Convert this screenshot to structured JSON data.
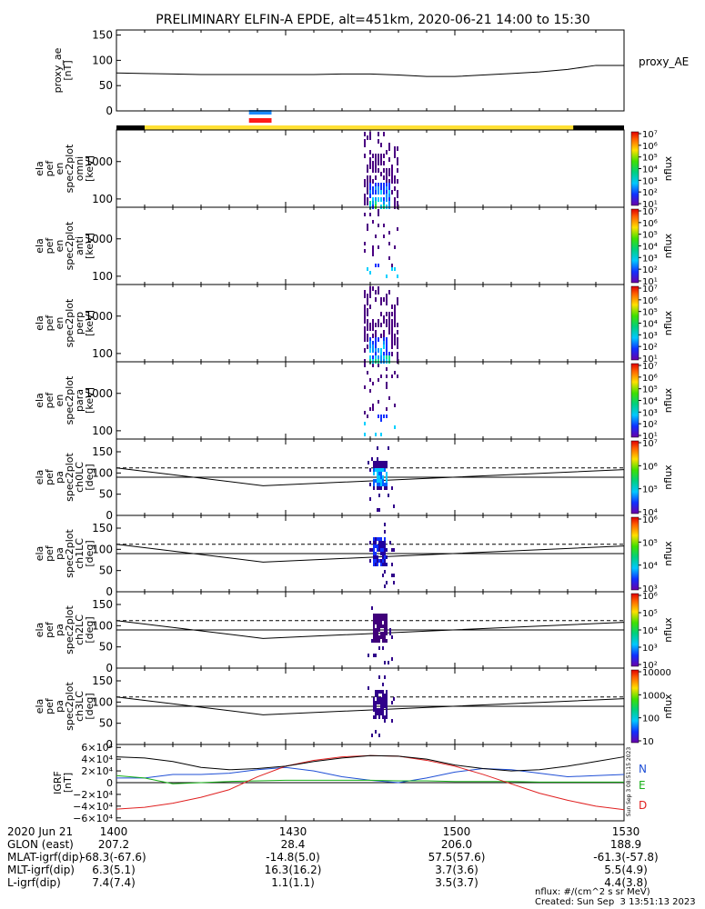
{
  "title": "PRELIMINARY ELFIN-A EPDE, alt=451km, 2020-06-21 14:00 to 15:30",
  "colors": {
    "sunlit": "#ffe033",
    "eclipse": "#000000",
    "science_blue": "#1e8bff",
    "science_red": "#ff1a1a",
    "B_north": "#1f4fd6",
    "B_east": "#18b018",
    "B_down": "#e02020"
  },
  "chart_data": [
    {
      "type": "line",
      "panel": "proxy_ae",
      "ylabel": [
        "proxy_ae",
        "[nT]"
      ],
      "yticks": [
        0,
        50,
        100,
        150
      ],
      "ylim": [
        0,
        160
      ],
      "series_label": "proxy_AE",
      "x_min": [
        0,
        5,
        10,
        15,
        20,
        25,
        30,
        35,
        40,
        45,
        50,
        55,
        60,
        65,
        70,
        75,
        80,
        85,
        90
      ],
      "values": [
        75,
        74,
        73,
        72,
        72,
        72,
        72,
        72,
        73,
        73,
        71,
        68,
        68,
        71,
        74,
        77,
        82,
        90,
        90
      ]
    },
    {
      "type": "heatmap",
      "panel": "omni",
      "ylabel": [
        "ela",
        "pef",
        "en",
        "spec2plot",
        "omni",
        "[keV]"
      ],
      "yticks": [
        "100",
        "1000"
      ],
      "yscale": "log",
      "ylim": [
        60,
        7000
      ],
      "colorbar_ticks": [
        "10¹",
        "10²",
        "10³",
        "10⁴",
        "10⁵",
        "10⁶",
        "10⁷"
      ],
      "colorbar_label": "nflux"
    },
    {
      "type": "heatmap",
      "panel": "anti",
      "ylabel": [
        "ela",
        "pef",
        "en",
        "spec2plot",
        "anti",
        "[keV]"
      ],
      "yticks": [
        "100",
        "1000"
      ],
      "yscale": "log",
      "ylim": [
        60,
        7000
      ],
      "colorbar_ticks": [
        "10¹",
        "10²",
        "10³",
        "10⁴",
        "10⁵",
        "10⁶",
        "10⁷"
      ],
      "colorbar_label": "nflux"
    },
    {
      "type": "heatmap",
      "panel": "perp",
      "ylabel": [
        "ela",
        "pef",
        "en",
        "spec2plot",
        "perp",
        "[keV]"
      ],
      "yticks": [
        "100",
        "1000"
      ],
      "yscale": "log",
      "ylim": [
        60,
        7000
      ],
      "colorbar_ticks": [
        "10¹",
        "10²",
        "10³",
        "10⁴",
        "10⁵",
        "10⁶",
        "10⁷"
      ],
      "colorbar_label": "nflux"
    },
    {
      "type": "heatmap",
      "panel": "para",
      "ylabel": [
        "ela",
        "pef",
        "en",
        "spec2plot",
        "para",
        "[keV]"
      ],
      "yticks": [
        "100",
        "1000"
      ],
      "yscale": "log",
      "ylim": [
        60,
        7000
      ],
      "colorbar_ticks": [
        "10¹",
        "10²",
        "10³",
        "10⁴",
        "10⁵",
        "10⁶",
        "10⁷"
      ],
      "colorbar_label": "nflux"
    },
    {
      "type": "heatmap",
      "panel": "ch0LC",
      "ylabel": [
        "ela",
        "pef",
        "pa",
        "spec2plot",
        "ch0LC",
        "[deg]"
      ],
      "yticks": [
        0,
        50,
        100,
        150
      ],
      "ylim": [
        0,
        180
      ],
      "colorbar_ticks": [
        "10⁴",
        "10⁵",
        "10⁶",
        "10⁷"
      ],
      "colorbar_label": "nflux"
    },
    {
      "type": "heatmap",
      "panel": "ch1LC",
      "ylabel": [
        "ela",
        "pef",
        "pa",
        "spec2plot",
        "ch1LC",
        "[deg]"
      ],
      "yticks": [
        0,
        50,
        100,
        150
      ],
      "ylim": [
        0,
        180
      ],
      "colorbar_ticks": [
        "10³",
        "10⁴",
        "10⁵",
        "10⁶"
      ],
      "colorbar_label": "nflux"
    },
    {
      "type": "heatmap",
      "panel": "ch2LC",
      "ylabel": [
        "ela",
        "pef",
        "pa",
        "spec2plot",
        "ch2LC",
        "[deg]"
      ],
      "yticks": [
        0,
        50,
        100,
        150
      ],
      "ylim": [
        0,
        180
      ],
      "colorbar_ticks": [
        "10²",
        "10³",
        "10⁴",
        "10⁵",
        "10⁶"
      ],
      "colorbar_label": "nflux"
    },
    {
      "type": "heatmap",
      "panel": "ch3LC",
      "ylabel": [
        "ela",
        "pef",
        "pa",
        "spec2plot",
        "ch3LC",
        "[deg]"
      ],
      "yticks": [
        0,
        50,
        100,
        150
      ],
      "ylim": [
        0,
        180
      ],
      "colorbar_ticks": [
        "10",
        "100",
        "1000",
        "10000"
      ],
      "colorbar_label": "nflux"
    },
    {
      "type": "line",
      "panel": "bfield",
      "ylabel": [
        "IGRF",
        "[nT]"
      ],
      "yticks": [
        "−6×10⁴",
        "−4×10⁴",
        "−2×10⁴",
        "0",
        "2×10⁴",
        "4×10⁴",
        "6×10⁴"
      ],
      "ylim": [
        -65000,
        65000
      ],
      "x_min": [
        0,
        5,
        10,
        15,
        20,
        25,
        30,
        35,
        40,
        45,
        50,
        55,
        60,
        65,
        70,
        75,
        80,
        85,
        90
      ],
      "series": [
        {
          "name": "N",
          "values": [
            8000,
            8000,
            14000,
            14000,
            16000,
            22000,
            26000,
            20000,
            10000,
            4000,
            0,
            8000,
            18000,
            24000,
            22000,
            16000,
            10000,
            12000,
            14000
          ]
        },
        {
          "name": "E",
          "values": [
            12000,
            8000,
            -2000,
            0,
            2000,
            3000,
            4000,
            4000,
            4000,
            4000,
            3000,
            3000,
            2000,
            2000,
            2000,
            1000,
            1000,
            1000,
            1000
          ]
        },
        {
          "name": "D",
          "values": [
            -45000,
            -42000,
            -35000,
            -25000,
            -12000,
            10000,
            28000,
            38000,
            44000,
            46000,
            45000,
            38000,
            28000,
            14000,
            -2000,
            -18000,
            -30000,
            -40000,
            -46000
          ]
        }
      ],
      "extra_series": [
        {
          "values": [
            44000,
            42000,
            36000,
            26000,
            22000,
            24000,
            28000,
            36000,
            42000,
            46000,
            45000,
            40000,
            30000,
            24000,
            20000,
            22000,
            28000,
            36000,
            44000
          ]
        }
      ]
    }
  ],
  "bar_legend": {
    "sunlit_min": [
      5,
      81
    ],
    "science_min": [
      23.5,
      27.5
    ]
  },
  "footer": {
    "rows": [
      {
        "label": "2020 Jun 21",
        "values": [
          "1400",
          "1430",
          "1500",
          "1530"
        ]
      },
      {
        "label": "GLON (east)",
        "values": [
          "207.2",
          "28.4",
          "206.0",
          "188.9"
        ]
      },
      {
        "label": "MLAT-igrf(dip)",
        "values": [
          "-68.3(-67.6)",
          "-14.8(5.0)",
          "57.5(57.6)",
          "-61.3(-57.8)"
        ]
      },
      {
        "label": "MLT-igrf(dip)",
        "values": [
          "6.3(5.1)",
          "16.3(16.2)",
          "3.7(3.6)",
          "5.5(4.9)"
        ]
      },
      {
        "label": "L-igrf(dip)",
        "values": [
          "7.4(7.4)",
          "1.1(1.1)",
          "3.5(3.7)",
          "4.4(3.8)"
        ]
      }
    ],
    "units": "nflux: #/(cm^2 s sr MeV)",
    "created": "Created: Sun Sep  3 13:51:13 2023",
    "vertical_stamp": "Sun Sep  3 08:51:15 2023"
  }
}
